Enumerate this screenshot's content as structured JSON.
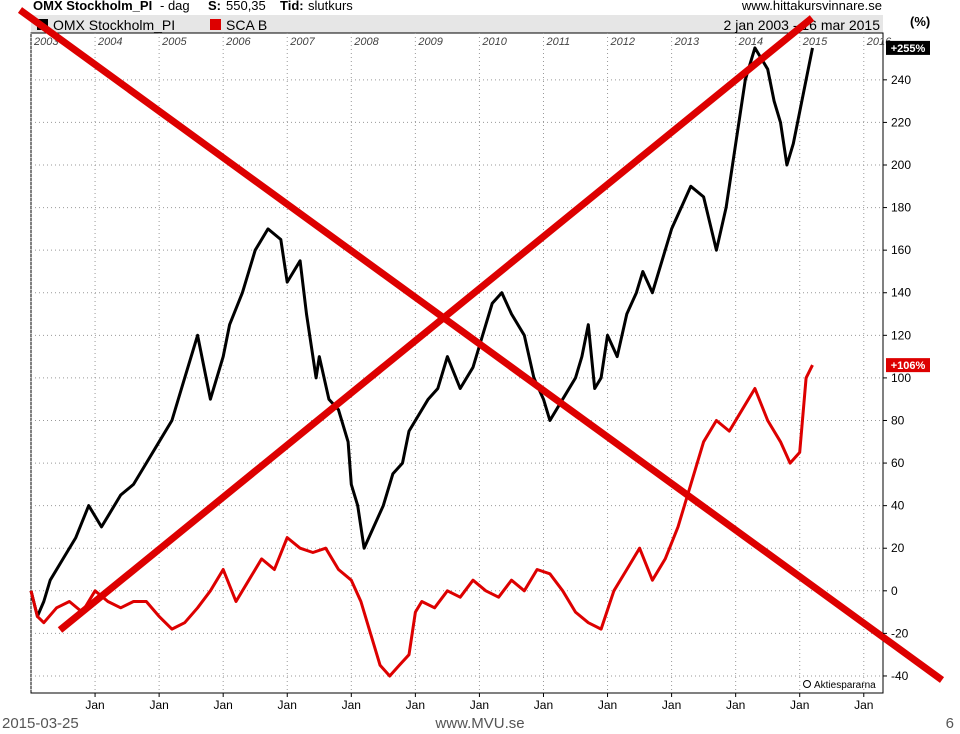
{
  "header": {
    "instrument": "OMX Stockholm_PI",
    "separator": " - ",
    "period": "dag",
    "s_label": "S:",
    "s_value": "550,35",
    "tid_label": "Tid:",
    "tid_value": "slutkurs",
    "site": "www.hittakursvinnare.se",
    "unit": "(%)"
  },
  "colors": {
    "omx": "#000000",
    "sca": "#dd0000",
    "cross": "#dd0000",
    "grid": "#999999",
    "legend_bg": "#e6e6e6"
  },
  "chart_data": {
    "type": "line",
    "title": "",
    "date_range": "2 jan 2003 - 16 mar 2015",
    "year_labels": [
      "2003",
      "2004",
      "2005",
      "2006",
      "2007",
      "2008",
      "2009",
      "2010",
      "2011",
      "2012",
      "2013",
      "2014",
      "2015",
      "2016"
    ],
    "x_tick_labels": [
      "Jan",
      "Jan",
      "Jan",
      "Jan",
      "Jan",
      "Jan",
      "Jan",
      "Jan",
      "Jan",
      "Jan",
      "Jan",
      "Jan",
      "Jan"
    ],
    "xlim": [
      2003.0,
      2016.3
    ],
    "ylim": [
      -48,
      262
    ],
    "y_ticks": [
      -40,
      -20,
      0,
      20,
      40,
      60,
      80,
      100,
      120,
      140,
      160,
      180,
      200,
      220,
      240
    ],
    "grid": true,
    "legend_position": "top-left",
    "series": [
      {
        "name": "OMX Stockholm_PI",
        "end_label": "+255%",
        "x": [
          2003.0,
          2003.1,
          2003.2,
          2003.3,
          2003.5,
          2003.7,
          2003.9,
          2004.1,
          2004.2,
          2004.4,
          2004.6,
          2004.8,
          2005.0,
          2005.2,
          2005.4,
          2005.6,
          2005.8,
          2006.0,
          2006.1,
          2006.3,
          2006.4,
          2006.5,
          2006.7,
          2006.9,
          2007.0,
          2007.2,
          2007.3,
          2007.45,
          2007.5,
          2007.65,
          2007.8,
          2007.95,
          2008.0,
          2008.1,
          2008.2,
          2008.35,
          2008.5,
          2008.65,
          2008.8,
          2008.9,
          2009.0,
          2009.2,
          2009.35,
          2009.5,
          2009.7,
          2009.9,
          2010.0,
          2010.1,
          2010.2,
          2010.35,
          2010.5,
          2010.7,
          2010.85,
          2011.0,
          2011.1,
          2011.3,
          2011.5,
          2011.6,
          2011.7,
          2011.8,
          2011.9,
          2012.0,
          2012.15,
          2012.3,
          2012.45,
          2012.55,
          2012.7,
          2012.85,
          2013.0,
          2013.15,
          2013.3,
          2013.5,
          2013.7,
          2013.85,
          2014.0,
          2014.15,
          2014.3,
          2014.5,
          2014.6,
          2014.7,
          2014.8,
          2014.9,
          2015.0,
          2015.1,
          2015.2
        ],
        "y": [
          0,
          -12,
          -5,
          5,
          15,
          25,
          40,
          30,
          35,
          45,
          50,
          60,
          70,
          80,
          100,
          120,
          90,
          110,
          125,
          140,
          150,
          160,
          170,
          165,
          145,
          155,
          130,
          100,
          110,
          90,
          85,
          70,
          50,
          40,
          20,
          30,
          40,
          55,
          60,
          75,
          80,
          90,
          95,
          110,
          95,
          105,
          115,
          125,
          135,
          140,
          130,
          120,
          100,
          90,
          80,
          90,
          100,
          110,
          125,
          95,
          100,
          120,
          110,
          130,
          140,
          150,
          140,
          155,
          170,
          180,
          190,
          185,
          160,
          180,
          210,
          240,
          255,
          245,
          230,
          220,
          200,
          210,
          225,
          240,
          255
        ],
        "color": "#000000"
      },
      {
        "name": "SCA B",
        "end_label": "+106%",
        "x": [
          2003.0,
          2003.1,
          2003.2,
          2003.4,
          2003.6,
          2003.8,
          2004.0,
          2004.2,
          2004.4,
          2004.6,
          2004.8,
          2005.0,
          2005.2,
          2005.4,
          2005.6,
          2005.8,
          2006.0,
          2006.2,
          2006.4,
          2006.6,
          2006.8,
          2007.0,
          2007.2,
          2007.4,
          2007.6,
          2007.8,
          2008.0,
          2008.15,
          2008.3,
          2008.45,
          2008.6,
          2008.75,
          2008.9,
          2009.0,
          2009.1,
          2009.3,
          2009.5,
          2009.7,
          2009.9,
          2010.1,
          2010.3,
          2010.5,
          2010.7,
          2010.9,
          2011.1,
          2011.3,
          2011.5,
          2011.7,
          2011.9,
          2012.1,
          2012.3,
          2012.5,
          2012.7,
          2012.9,
          2013.1,
          2013.3,
          2013.5,
          2013.7,
          2013.9,
          2014.1,
          2014.3,
          2014.5,
          2014.7,
          2014.85,
          2015.0,
          2015.1,
          2015.2
        ],
        "y": [
          0,
          -12,
          -15,
          -8,
          -5,
          -10,
          0,
          -5,
          -8,
          -5,
          -5,
          -12,
          -18,
          -15,
          -8,
          0,
          10,
          -5,
          5,
          15,
          10,
          25,
          20,
          18,
          20,
          10,
          5,
          -5,
          -20,
          -35,
          -40,
          -35,
          -30,
          -10,
          -5,
          -8,
          0,
          -3,
          5,
          0,
          -3,
          5,
          0,
          10,
          8,
          0,
          -10,
          -15,
          -18,
          0,
          10,
          20,
          5,
          15,
          30,
          50,
          70,
          80,
          75,
          85,
          95,
          80,
          70,
          60,
          65,
          100,
          106
        ],
        "color": "#dd0000"
      }
    ]
  },
  "watermark": "Aktiespararna",
  "footer": {
    "date": "2015-03-25",
    "site": "www.MVU.se",
    "page": "6"
  }
}
